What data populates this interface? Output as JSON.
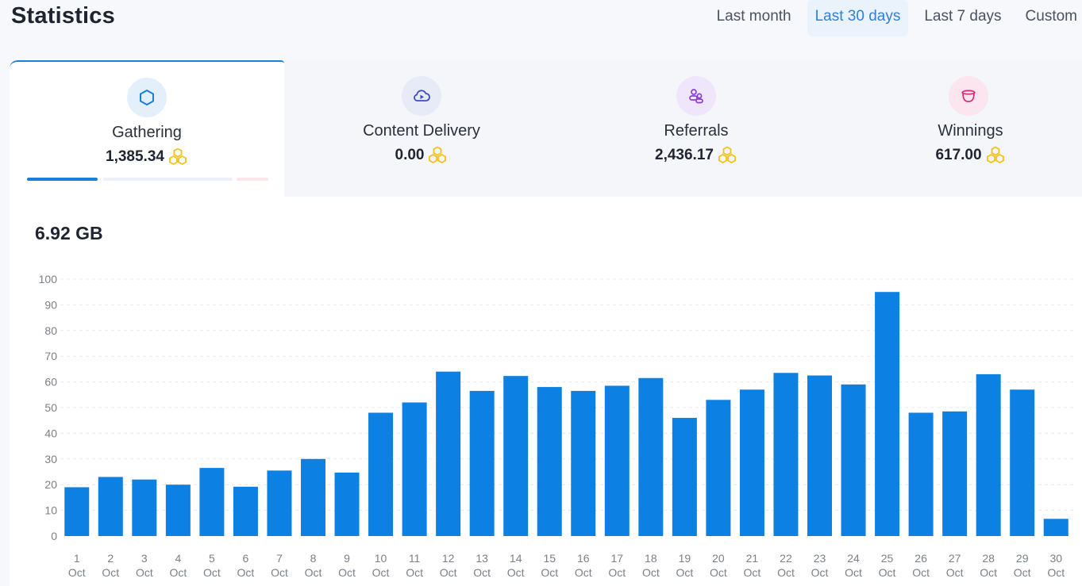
{
  "header": {
    "title": "Statistics",
    "ranges": [
      {
        "label": "Last month",
        "active": false
      },
      {
        "label": "Last 30 days",
        "active": true
      },
      {
        "label": "Last 7 days",
        "active": false
      },
      {
        "label": "Custom",
        "active": false
      }
    ]
  },
  "stat_tabs": [
    {
      "label": "Gathering",
      "value": "1,385.34",
      "icon": "hexagon-icon",
      "icon_color": "#1a7fd9",
      "icon_bg": "#e3f0fb",
      "active": true
    },
    {
      "label": "Content Delivery",
      "value": "0.00",
      "icon": "cloud-play-icon",
      "icon_color": "#3b4fc4",
      "icon_bg": "#e7eaf7",
      "active": false
    },
    {
      "label": "Referrals",
      "value": "2,436.17",
      "icon": "users-icon",
      "icon_color": "#8a3fd6",
      "icon_bg": "#efe6fb",
      "active": false
    },
    {
      "label": "Winnings",
      "value": "617.00",
      "icon": "pot-icon",
      "icon_color": "#d6307a",
      "icon_bg": "#fbe6ef",
      "active": false
    }
  ],
  "honey_icon_color": "#f2c21b",
  "total_label": "6.92 GB",
  "chart_data": {
    "type": "bar",
    "color": "#0c80e3",
    "ylim": [
      0,
      100
    ],
    "yticks": [
      0,
      10,
      20,
      30,
      40,
      50,
      60,
      70,
      80,
      90,
      100
    ],
    "grid": true,
    "categories": [
      "1 Oct",
      "2 Oct",
      "3 Oct",
      "4 Oct",
      "5 Oct",
      "6 Oct",
      "7 Oct",
      "8 Oct",
      "9 Oct",
      "10 Oct",
      "11 Oct",
      "12 Oct",
      "13 Oct",
      "14 Oct",
      "15 Oct",
      "16 Oct",
      "17 Oct",
      "18 Oct",
      "19 Oct",
      "20 Oct",
      "21 Oct",
      "22 Oct",
      "23 Oct",
      "24 Oct",
      "25 Oct",
      "26 Oct",
      "27 Oct",
      "28 Oct",
      "29 Oct",
      "30 Oct"
    ],
    "values": [
      19,
      23,
      22,
      20,
      26.5,
      19.2,
      25.5,
      30,
      24.7,
      48,
      52,
      64,
      56.5,
      62.3,
      58,
      56.5,
      58.5,
      61.5,
      46,
      53,
      57,
      63.5,
      62.5,
      59,
      95,
      48,
      48.5,
      63,
      57,
      6.7
    ]
  }
}
